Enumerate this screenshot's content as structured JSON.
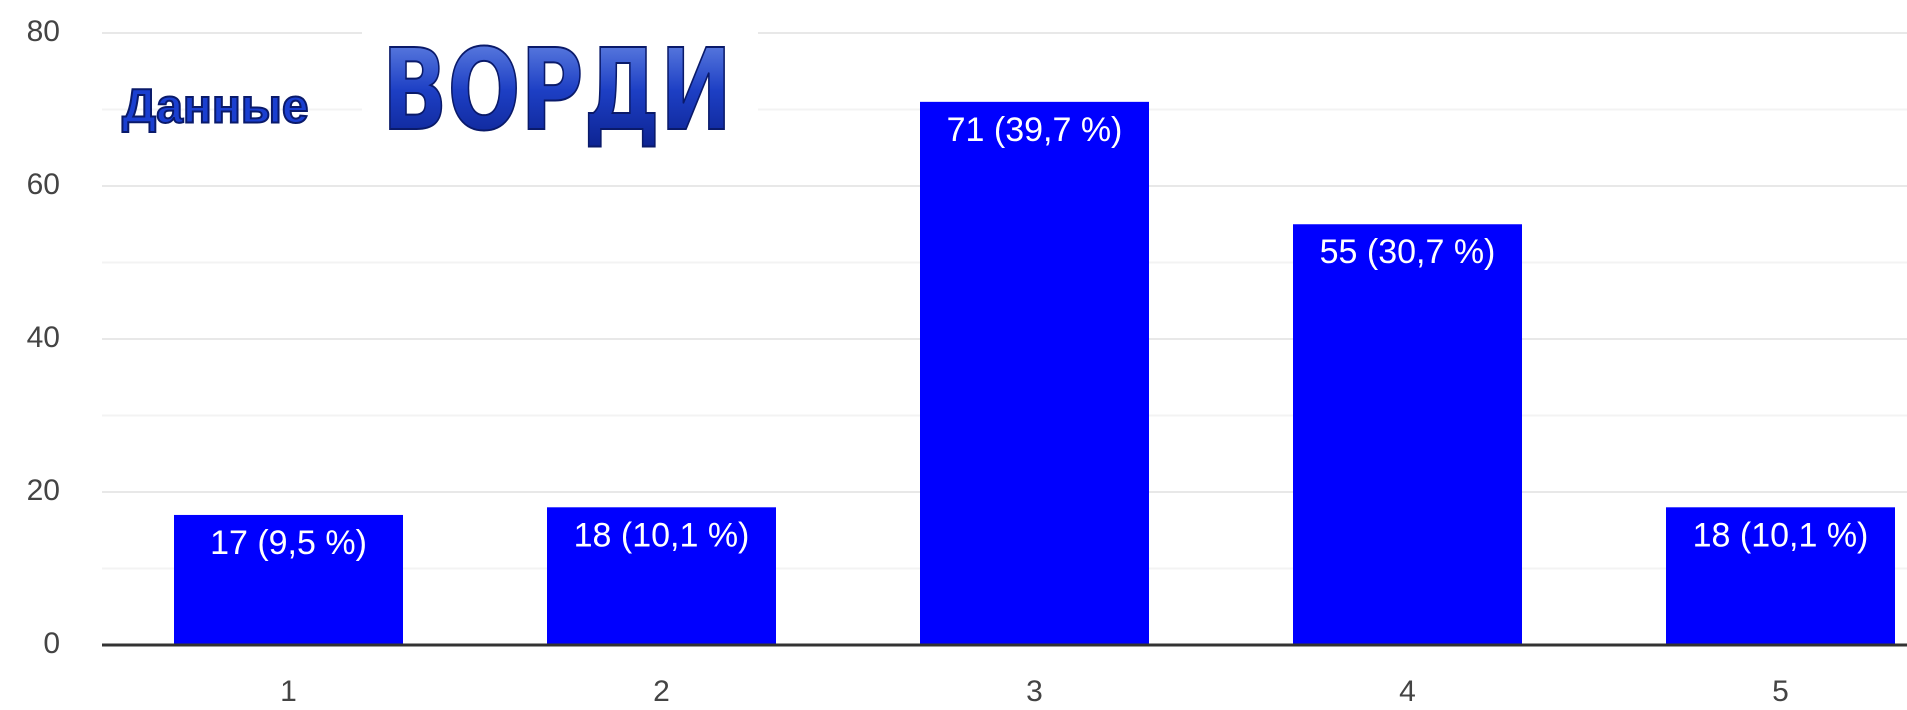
{
  "chart_data": {
    "type": "bar",
    "annotations": [
      "Данные",
      "ВОРДИ"
    ],
    "categories": [
      "1",
      "2",
      "3",
      "4",
      "5"
    ],
    "values": [
      17,
      18,
      71,
      55,
      18
    ],
    "value_labels": [
      "17 (9,5 %)",
      "18 (10,1 %)",
      "71 (39,7 %)",
      "55 (30,7 %)",
      "18 (10,1 %)"
    ],
    "color": "#0000ff",
    "ylim": [
      0,
      80
    ],
    "yticks": [
      0,
      20,
      40,
      60,
      80
    ],
    "yminorticks": [
      10,
      30,
      50,
      70
    ],
    "grid": true
  }
}
